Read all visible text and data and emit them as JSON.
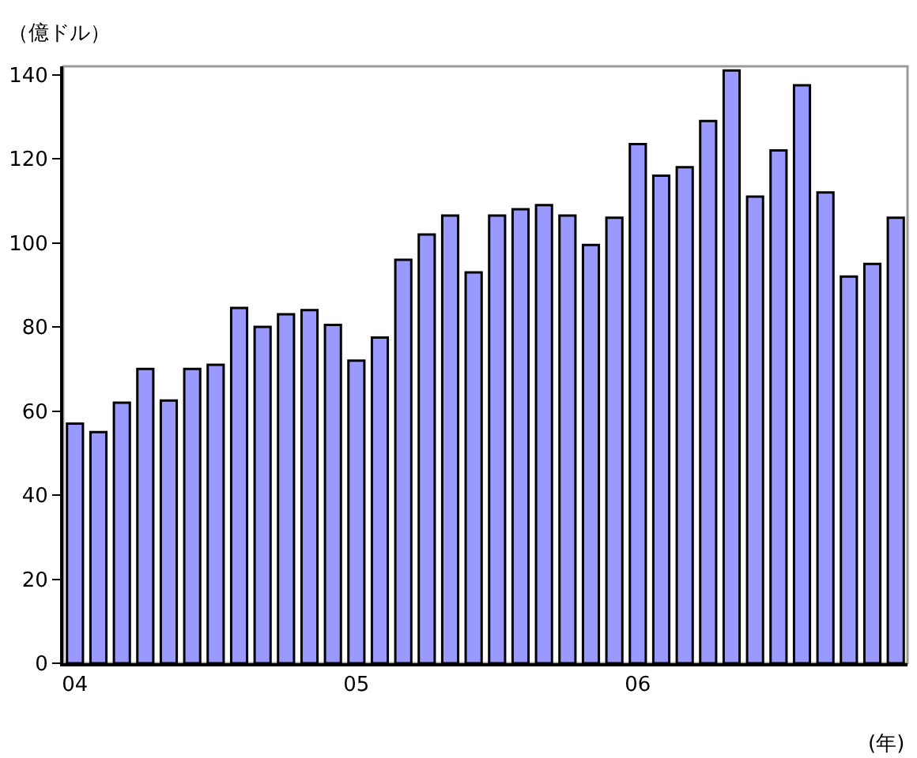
{
  "chart_data": {
    "type": "bar",
    "ylabel": "（億ドル）",
    "xlabel": "(年)",
    "categories": [
      "04",
      null,
      null,
      null,
      null,
      null,
      null,
      null,
      null,
      null,
      null,
      null,
      "05",
      null,
      null,
      null,
      null,
      null,
      null,
      null,
      null,
      null,
      null,
      null,
      "06",
      null,
      null,
      null,
      null,
      null,
      null,
      null,
      null,
      null,
      null,
      null
    ],
    "values": [
      57,
      55,
      62,
      70,
      62.5,
      70,
      71,
      84.5,
      80,
      83,
      84,
      80.5,
      72,
      77.5,
      96,
      102,
      106.5,
      93,
      106.5,
      108,
      109,
      106.5,
      99.5,
      106,
      123.5,
      116,
      118,
      129,
      141,
      111,
      122,
      137.5,
      112,
      92,
      95,
      106
    ],
    "color": "#9999ff",
    "ylim": [
      0,
      142
    ],
    "yticks": [
      0,
      20,
      40,
      60,
      80,
      100,
      120,
      140
    ],
    "grid": false,
    "legend": false
  }
}
